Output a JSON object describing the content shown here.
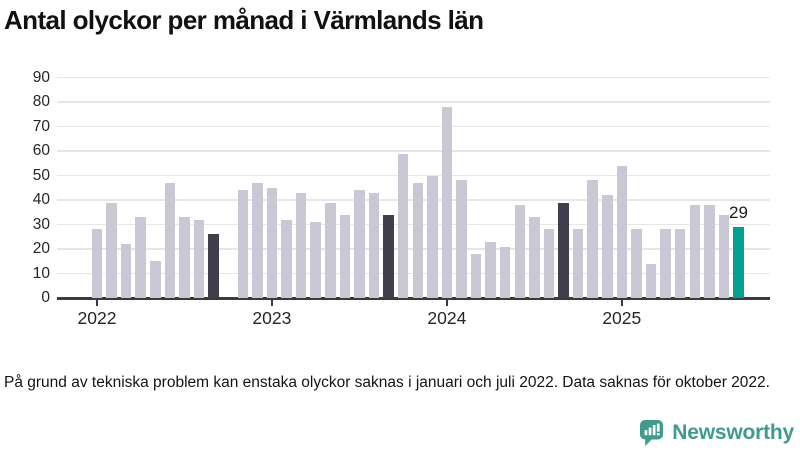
{
  "title": "Antal olyckor per månad i Värmlands län",
  "footnote": "På grund av tekniska problem kan enstaka olyckor saknas i januari och juli 2022. Data saknas för oktober 2022.",
  "logo": {
    "text": "Newsworthy",
    "icon": "bar-chart-speech-bubble-icon",
    "color": "#3f9b8d"
  },
  "colors": {
    "bar_default": "#c9c8d4",
    "bar_highlight": "#3f3e4c",
    "bar_current": "#00a190",
    "grid": "#e6e6e6",
    "axis": "#3b3b3b",
    "tick_text": "#262626"
  },
  "chart_data": {
    "type": "bar",
    "title": "Antal olyckor per månad i Värmlands län",
    "xlabel": "",
    "ylabel": "",
    "ylim": [
      0,
      90
    ],
    "yticks": [
      0,
      10,
      20,
      30,
      40,
      50,
      60,
      70,
      80,
      90
    ],
    "grid": true,
    "legend": "none",
    "months": [
      {
        "month": "2022-01",
        "value": 28,
        "type": "regular"
      },
      {
        "month": "2022-02",
        "value": 39,
        "type": "regular"
      },
      {
        "month": "2022-03",
        "value": 22,
        "type": "regular"
      },
      {
        "month": "2022-04",
        "value": 33,
        "type": "regular"
      },
      {
        "month": "2022-05",
        "value": 15,
        "type": "regular"
      },
      {
        "month": "2022-06",
        "value": 47,
        "type": "regular"
      },
      {
        "month": "2022-07",
        "value": 33,
        "type": "regular"
      },
      {
        "month": "2022-08",
        "value": 32,
        "type": "regular"
      },
      {
        "month": "2022-09",
        "value": 26,
        "type": "september_highlight"
      },
      {
        "month": "2022-10",
        "value": null,
        "type": "missing"
      },
      {
        "month": "2022-11",
        "value": 44,
        "type": "regular"
      },
      {
        "month": "2022-12",
        "value": 47,
        "type": "regular"
      },
      {
        "month": "2023-01",
        "value": 45,
        "type": "regular"
      },
      {
        "month": "2023-02",
        "value": 32,
        "type": "regular"
      },
      {
        "month": "2023-03",
        "value": 43,
        "type": "regular"
      },
      {
        "month": "2023-04",
        "value": 31,
        "type": "regular"
      },
      {
        "month": "2023-05",
        "value": 39,
        "type": "regular"
      },
      {
        "month": "2023-06",
        "value": 34,
        "type": "regular"
      },
      {
        "month": "2023-07",
        "value": 44,
        "type": "regular"
      },
      {
        "month": "2023-08",
        "value": 43,
        "type": "regular"
      },
      {
        "month": "2023-09",
        "value": 34,
        "type": "september_highlight"
      },
      {
        "month": "2023-10",
        "value": 59,
        "type": "regular"
      },
      {
        "month": "2023-11",
        "value": 47,
        "type": "regular"
      },
      {
        "month": "2023-12",
        "value": 50,
        "type": "regular"
      },
      {
        "month": "2024-01",
        "value": 78,
        "type": "regular"
      },
      {
        "month": "2024-02",
        "value": 48,
        "type": "regular"
      },
      {
        "month": "2024-03",
        "value": 18,
        "type": "regular"
      },
      {
        "month": "2024-04",
        "value": 23,
        "type": "regular"
      },
      {
        "month": "2024-05",
        "value": 21,
        "type": "regular"
      },
      {
        "month": "2024-06",
        "value": 38,
        "type": "regular"
      },
      {
        "month": "2024-07",
        "value": 33,
        "type": "regular"
      },
      {
        "month": "2024-08",
        "value": 28,
        "type": "regular"
      },
      {
        "month": "2024-09",
        "value": 39,
        "type": "september_highlight"
      },
      {
        "month": "2024-10",
        "value": 28,
        "type": "regular"
      },
      {
        "month": "2024-11",
        "value": 48,
        "type": "regular"
      },
      {
        "month": "2024-12",
        "value": 42,
        "type": "regular"
      },
      {
        "month": "2025-01",
        "value": 54,
        "type": "regular"
      },
      {
        "month": "2025-02",
        "value": 28,
        "type": "regular"
      },
      {
        "month": "2025-03",
        "value": 14,
        "type": "regular"
      },
      {
        "month": "2025-04",
        "value": 28,
        "type": "regular"
      },
      {
        "month": "2025-05",
        "value": 28,
        "type": "regular"
      },
      {
        "month": "2025-06",
        "value": 38,
        "type": "regular"
      },
      {
        "month": "2025-07",
        "value": 38,
        "type": "regular"
      },
      {
        "month": "2025-08",
        "value": 34,
        "type": "regular"
      },
      {
        "month": "2025-09",
        "value": 29,
        "type": "latest"
      }
    ],
    "x_ticks": [
      {
        "label": "2022",
        "month_index": 0
      },
      {
        "label": "2023",
        "month_index": 12
      },
      {
        "label": "2024",
        "month_index": 24
      },
      {
        "label": "2025",
        "month_index": 36
      }
    ],
    "annotation": {
      "text": "29",
      "month_index": 44
    }
  }
}
